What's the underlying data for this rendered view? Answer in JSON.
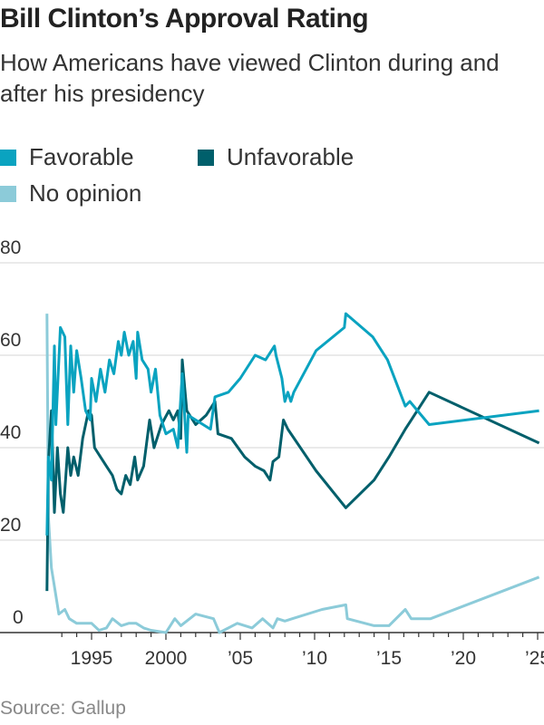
{
  "title": "Bill Clinton’s Approval Rating",
  "subtitle": "How Americans have viewed Clinton during and after his presidency",
  "source": "Source: Gallup",
  "chart_data": {
    "type": "line",
    "title": "Bill Clinton’s Approval Rating",
    "ylim": [
      0,
      80
    ],
    "xlim": [
      1992,
      2025.2
    ],
    "grid": true,
    "legend": "top-left",
    "yticks": [
      {
        "v": 0,
        "label": "0"
      },
      {
        "v": 20,
        "label": "20"
      },
      {
        "v": 40,
        "label": "40"
      },
      {
        "v": 60,
        "label": "60"
      },
      {
        "v": 80,
        "label": "80"
      }
    ],
    "xticks": [
      {
        "v": 1995,
        "label": "1995"
      },
      {
        "v": 2000,
        "label": "2000"
      },
      {
        "v": 2005,
        "label": "’05"
      },
      {
        "v": 2010,
        "label": "’10"
      },
      {
        "v": 2015,
        "label": "’15"
      },
      {
        "v": 2020,
        "label": "’20"
      },
      {
        "v": 2025,
        "label": "’25"
      }
    ],
    "series": [
      {
        "name": "Favorable",
        "color": "#0aa3c0",
        "x": [
          1992.0,
          1992.1,
          1992.3,
          1992.5,
          1992.6,
          1992.9,
          1993.2,
          1993.4,
          1993.6,
          1993.8,
          1994.0,
          1994.3,
          1994.6,
          1994.9,
          1995.0,
          1995.3,
          1995.6,
          1995.9,
          1996.2,
          1996.5,
          1996.8,
          1997.0,
          1997.2,
          1997.5,
          1997.8,
          1998.0,
          1998.1,
          1998.4,
          1998.8,
          1999.0,
          1999.3,
          1999.6,
          2000.0,
          2000.5,
          2000.8,
          2001.1,
          2001.4,
          2001.5,
          2002.0,
          2003.0,
          2003.3,
          2004.2,
          2005.0,
          2006.0,
          2006.7,
          2007.3,
          2007.4,
          2007.8,
          2008.0,
          2008.2,
          2008.4,
          2008.6,
          2010.1,
          2012.0,
          2012.1,
          2013.9,
          2014.9,
          2016.1,
          2016.4,
          2017.7,
          2025.1
        ],
        "values": [
          21,
          38,
          33,
          62,
          45,
          66,
          64,
          45,
          62,
          52,
          61,
          55,
          48,
          46,
          55,
          50,
          57,
          52,
          59,
          56,
          63,
          60,
          65,
          60,
          63,
          55,
          65,
          59,
          57,
          52,
          57,
          47,
          43,
          44,
          40,
          56,
          39,
          47,
          46,
          44,
          51,
          52,
          55,
          60,
          59,
          62,
          60,
          55,
          50,
          52,
          50,
          52,
          61,
          66,
          69,
          64,
          59,
          49,
          50,
          45,
          48
        ]
      },
      {
        "name": "Unfavorable",
        "color": "#005f6b",
        "x": [
          1992.0,
          1992.1,
          1992.3,
          1992.5,
          1992.7,
          1992.9,
          1993.1,
          1993.4,
          1993.6,
          1993.8,
          1994.1,
          1994.4,
          1994.8,
          1995.0,
          1995.2,
          1995.6,
          1996.0,
          1996.4,
          1996.7,
          1997.0,
          1997.3,
          1997.6,
          1997.9,
          1998.1,
          1998.5,
          1998.9,
          1999.2,
          1999.7,
          2000.2,
          2000.5,
          2000.8,
          2001.0,
          2001.1,
          2001.4,
          2002.0,
          2002.7,
          2003.3,
          2003.5,
          2004.4,
          2005.3,
          2006.0,
          2006.6,
          2007.0,
          2007.2,
          2007.6,
          2007.9,
          2008.2,
          2010.1,
          2012.1,
          2014.0,
          2015.0,
          2016.1,
          2016.5,
          2017.7,
          2025.1
        ],
        "values": [
          9,
          37,
          48,
          26,
          40,
          30,
          26,
          40,
          34,
          38,
          34,
          42,
          48,
          47,
          40,
          38,
          36,
          34,
          31,
          30,
          34,
          32,
          38,
          33,
          36,
          46,
          40,
          45,
          48,
          46,
          48,
          42,
          59,
          48,
          45,
          47,
          50,
          43,
          42,
          38,
          36,
          35,
          33,
          37,
          38,
          46,
          44,
          35,
          27,
          33,
          38,
          44,
          46,
          52,
          41
        ]
      },
      {
        "name": "No opinion",
        "color": "#8ccbd9",
        "x": [
          1992.0,
          1992.1,
          1992.3,
          1992.5,
          1992.8,
          1993.2,
          1993.5,
          1994.0,
          1995.0,
          1995.5,
          1996.0,
          1996.4,
          1997.0,
          1997.5,
          1998.0,
          1998.5,
          1999.0,
          2000.0,
          2000.6,
          2001.0,
          2002.0,
          2003.2,
          2003.6,
          2004.8,
          2005.8,
          2006.5,
          2007.2,
          2007.5,
          2008.0,
          2008.5,
          2010.5,
          2012.1,
          2012.2,
          2014.0,
          2015.0,
          2016.1,
          2016.5,
          2017.8,
          2025.1
        ],
        "values": [
          69,
          25,
          14,
          10,
          4,
          5,
          3,
          2,
          2,
          0.5,
          1,
          3,
          1.5,
          2,
          2,
          1,
          0.5,
          0,
          3,
          1.5,
          4,
          3,
          0,
          2,
          1,
          3,
          1,
          3,
          2.5,
          3,
          5,
          6,
          3,
          1.5,
          1.5,
          5,
          3,
          3,
          12
        ]
      }
    ]
  }
}
